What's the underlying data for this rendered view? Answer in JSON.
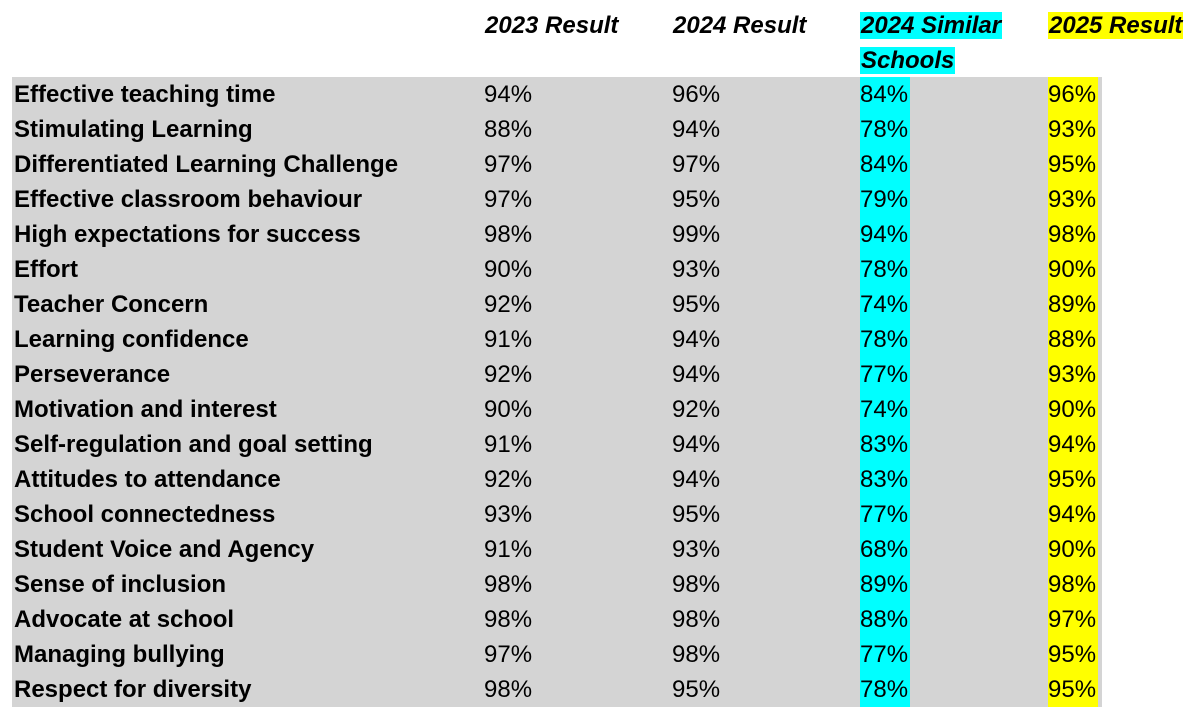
{
  "headers": {
    "col_2023": "2023 Result",
    "col_2024": "2024 Result",
    "col_similar": "2024 Similar Schools",
    "col_2025": "2025 Result"
  },
  "highlight_colors": {
    "similar_schools": "#00FFFF",
    "result_2025": "#FFFF00",
    "row_band": "#D4D4D4"
  },
  "rows": [
    {
      "label": "Effective teaching time",
      "r2023": "94%",
      "r2024": "96%",
      "similar": "84%",
      "r2025": "96%"
    },
    {
      "label": "Stimulating Learning",
      "r2023": "88%",
      "r2024": "94%",
      "similar": "78%",
      "r2025": "93%"
    },
    {
      "label": "Differentiated Learning Challenge",
      "r2023": "97%",
      "r2024": "97%",
      "similar": "84%",
      "r2025": "95%"
    },
    {
      "label": "Effective classroom behaviour",
      "r2023": "97%",
      "r2024": "95%",
      "similar": "79%",
      "r2025": "93%"
    },
    {
      "label": "High expectations for success",
      "r2023": "98%",
      "r2024": "99%",
      "similar": "94%",
      "r2025": "98%"
    },
    {
      "label": "Effort",
      "r2023": "90%",
      "r2024": "93%",
      "similar": "78%",
      "r2025": "90%"
    },
    {
      "label": "Teacher Concern",
      "r2023": "92%",
      "r2024": "95%",
      "similar": "74%",
      "r2025": "89%"
    },
    {
      "label": "Learning confidence",
      "r2023": "91%",
      "r2024": "94%",
      "similar": "78%",
      "r2025": "88%"
    },
    {
      "label": "Perseverance",
      "r2023": "92%",
      "r2024": "94%",
      "similar": "77%",
      "r2025": "93%"
    },
    {
      "label": "Motivation and interest",
      "r2023": "90%",
      "r2024": "92%",
      "similar": "74%",
      "r2025": "90%"
    },
    {
      "label": "Self-regulation and goal setting",
      "r2023": "91%",
      "r2024": "94%",
      "similar": "83%",
      "r2025": "94%"
    },
    {
      "label": "Attitudes to attendance",
      "r2023": "92%",
      "r2024": "94%",
      "similar": "83%",
      "r2025": "95%"
    },
    {
      "label": "School connectedness",
      "r2023": "93%",
      "r2024": "95%",
      "similar": "77%",
      "r2025": "94%"
    },
    {
      "label": "Student Voice and Agency",
      "r2023": "91%",
      "r2024": "93%",
      "similar": "68%",
      "r2025": "90%"
    },
    {
      "label": "Sense of inclusion",
      "r2023": "98%",
      "r2024": "98%",
      "similar": "89%",
      "r2025": "98%"
    },
    {
      "label": "Advocate at school",
      "r2023": "98%",
      "r2024": "98%",
      "similar": "88%",
      "r2025": "97%"
    },
    {
      "label": "Managing bullying",
      "r2023": "97%",
      "r2024": "98%",
      "similar": "77%",
      "r2025": "95%"
    },
    {
      "label": "Respect for diversity",
      "r2023": "98%",
      "r2024": "95%",
      "similar": "78%",
      "r2025": "95%"
    }
  ]
}
